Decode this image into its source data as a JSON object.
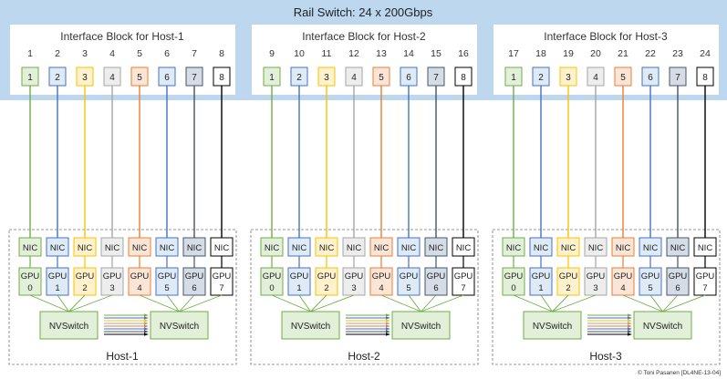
{
  "title": "Rail Switch: 24 x 200Gbps",
  "credit": "© Toni Pasanen [DL4NE-13-04]",
  "nic_label": "NIC",
  "gpu_label": "GPU",
  "nvswitch_label": "NVSwitch",
  "rail_colors": [
    "#70ad47",
    "#4472c4",
    "#ffc000",
    "#a5a5a5",
    "#ed7d31",
    "#4472c4",
    "#44546a",
    "#000000"
  ],
  "rail_fills": [
    "#e2efd9",
    "#deebf7",
    "#fff2cc",
    "#ededed",
    "#fbe5d6",
    "#deebf7",
    "#d6dce5",
    "#ffffff"
  ],
  "hosts": [
    {
      "interface_title": "Interface Block for Host-1",
      "host_label": "Host-1",
      "port_numbers": [
        "1",
        "2",
        "3",
        "4",
        "5",
        "6",
        "7",
        "8"
      ],
      "port_labels": [
        "1",
        "2",
        "3",
        "4",
        "5",
        "6",
        "7",
        "8"
      ],
      "gpu_ids": [
        "0",
        "1",
        "2",
        "3",
        "4",
        "5",
        "6",
        "7"
      ]
    },
    {
      "interface_title": "Interface Block for Host-2",
      "host_label": "Host-2",
      "port_numbers": [
        "9",
        "10",
        "11",
        "12",
        "13",
        "14",
        "15",
        "16"
      ],
      "port_labels": [
        "1",
        "2",
        "3",
        "4",
        "5",
        "6",
        "7",
        "8"
      ],
      "gpu_ids": [
        "0",
        "1",
        "2",
        "3",
        "4",
        "5",
        "6",
        "7"
      ]
    },
    {
      "interface_title": "Interface Block for Host-3",
      "host_label": "Host-3",
      "port_numbers": [
        "17",
        "18",
        "19",
        "20",
        "21",
        "22",
        "23",
        "24"
      ],
      "port_labels": [
        "1",
        "2",
        "3",
        "4",
        "5",
        "6",
        "7",
        "8"
      ],
      "gpu_ids": [
        "0",
        "1",
        "2",
        "3",
        "4",
        "5",
        "6",
        "7"
      ]
    }
  ]
}
